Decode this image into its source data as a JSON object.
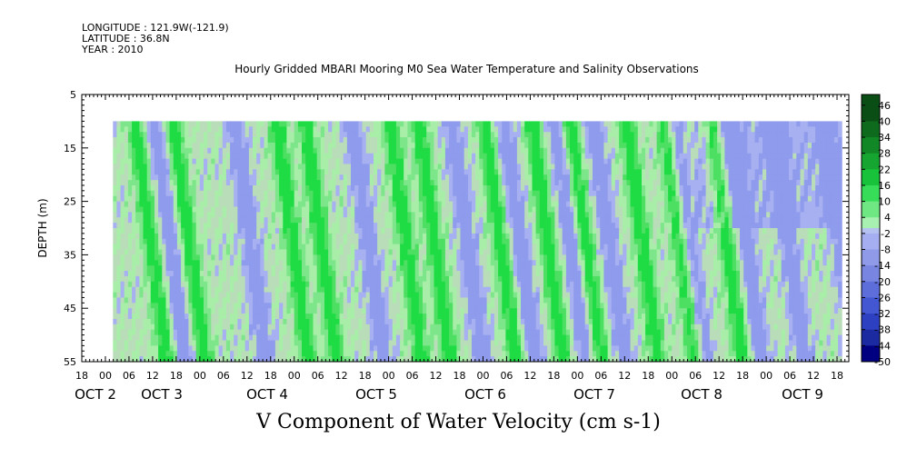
{
  "header": {
    "longitude": "LONGITUDE : 121.9W(-121.9)",
    "latitude": "LATITUDE : 36.8N",
    "year": "YEAR : 2010"
  },
  "chart_data": {
    "type": "heatmap",
    "title": "Hourly Gridded MBARI Mooring M0 Sea Water Temperature and Salinity Observations",
    "xlabel": "V Component of Water Velocity (cm s-1)",
    "ylabel": "DEPTH (m)",
    "ylim": [
      5,
      55
    ],
    "y_ticks": [
      "5",
      "15",
      "25",
      "35",
      "45",
      "55"
    ],
    "x_hour_ticks": [
      "18",
      "00",
      "06",
      "12",
      "18",
      "00",
      "06",
      "12",
      "18",
      "00",
      "06",
      "12",
      "18",
      "00",
      "06",
      "12",
      "18",
      "00",
      "06",
      "12",
      "18",
      "00",
      "06",
      "12",
      "18",
      "00",
      "06",
      "12",
      "18",
      "00",
      "06",
      "12",
      "18"
    ],
    "x_day_labels": [
      "OCT  2",
      "OCT  3",
      "OCT  4",
      "OCT  5",
      "OCT  6",
      "OCT  7",
      "OCT  8",
      "OCT  9"
    ],
    "data_depth_range": [
      10,
      55
    ],
    "data_time_range": [
      "OCT 2 02:00",
      "OCT 9 20:00"
    ],
    "colorbar_labels": [
      "46",
      "40",
      "34",
      "28",
      "22",
      "16",
      "10",
      "4",
      "-2",
      "-8",
      "-14",
      "-20",
      "-26",
      "-32",
      "-38",
      "-44",
      "-50"
    ],
    "colorbar_range": [
      -50,
      50
    ],
    "colors": {
      "neg_strong": "#000080",
      "neg_mid": "#3b52d8",
      "neg_weak": "#9aa4ee",
      "zero": "#b6cdb6",
      "pos_weak": "#a6f0a6",
      "pos_mid": "#12e13c",
      "pos_strong": "#0a4e16"
    },
    "green_bands_day_of_month": [
      2.3,
      2.7,
      3.8,
      4.1,
      5.0,
      5.3,
      6.0,
      6.5,
      6.9,
      7.5,
      7.9,
      8.4
    ],
    "blue_bands_day_of_month": [
      2.5,
      3.35,
      4.6,
      5.65,
      6.2,
      6.75,
      7.15,
      8.0,
      8.6,
      9.05,
      9.6
    ]
  }
}
